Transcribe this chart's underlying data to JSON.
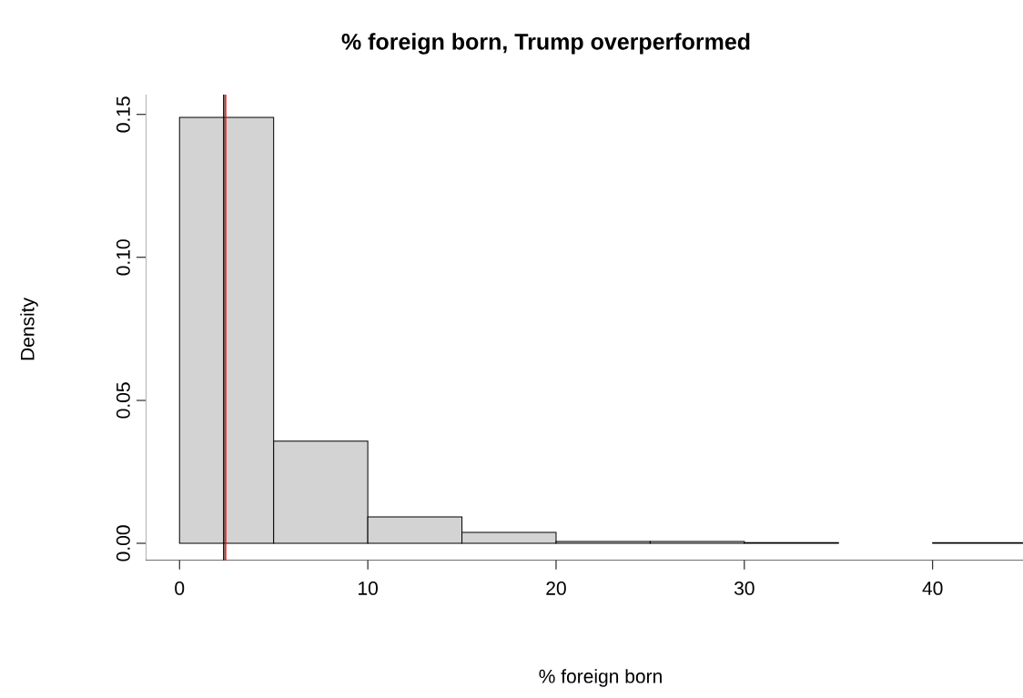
{
  "chart_data": {
    "type": "histogram",
    "title": "% foreign born, Trump overperformed",
    "xlabel": "% foreign born",
    "ylabel": "Density",
    "bins": [
      0,
      5,
      10,
      15,
      20,
      25,
      30,
      35,
      40,
      45
    ],
    "values": [
      0.149,
      0.0357,
      0.0092,
      0.0038,
      0.0006,
      0.0006,
      0.0002,
      null,
      0.0002
    ],
    "color": "#d3d3d3",
    "xlim": [
      -1.8,
      44.8
    ],
    "ylim": [
      -0.006,
      0.157
    ],
    "xticks": [
      0,
      10,
      20,
      30,
      40
    ],
    "yticks": [
      {
        "value": 0,
        "label": "0.00"
      },
      {
        "value": 0.05,
        "label": "0.05"
      },
      {
        "value": 0.1,
        "label": "0.10"
      },
      {
        "value": 0.15,
        "label": "0.15"
      }
    ],
    "ref_lines": [
      {
        "axis": "x",
        "value": 2.35,
        "color": "#000000"
      },
      {
        "axis": "x",
        "value": 2.45,
        "color": "#ff0000"
      }
    ]
  }
}
